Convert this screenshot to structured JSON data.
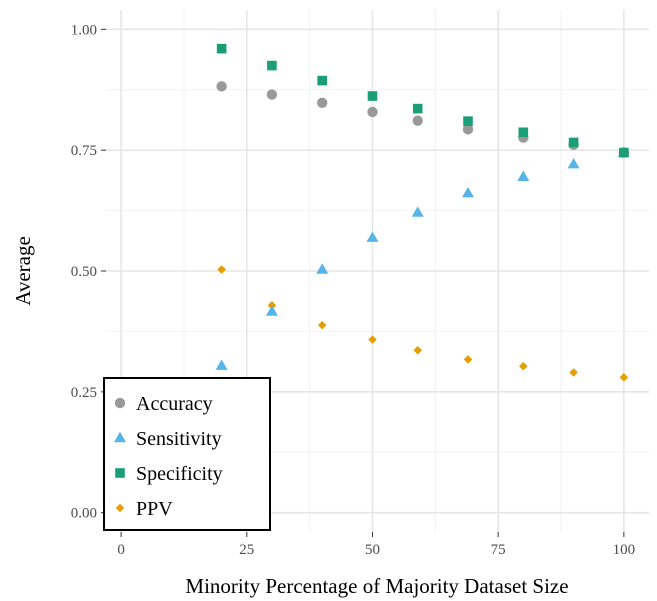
{
  "chart_data": {
    "type": "scatter",
    "title": "",
    "xlabel": "Minority Percentage of Majority Dataset Size",
    "ylabel": "Average",
    "xlim": [
      -3,
      105
    ],
    "ylim": [
      -0.04,
      1.04
    ],
    "x_ticks": [
      0,
      25,
      50,
      75,
      100
    ],
    "x_tick_labels": [
      "0",
      "25",
      "50",
      "75",
      "100"
    ],
    "y_ticks": [
      0,
      0.25,
      0.5,
      0.75,
      1.0
    ],
    "y_tick_labels": [
      "0.00",
      "0.25",
      "0.50",
      "0.75",
      "1.00"
    ],
    "grid": true,
    "legend_position": "bottom-left",
    "x": [
      20,
      30,
      40,
      50,
      59,
      69,
      80,
      90,
      100
    ],
    "series": [
      {
        "name": "Accuracy",
        "marker": "circle",
        "color": "#999999",
        "values": [
          0.882,
          0.865,
          0.848,
          0.829,
          0.811,
          0.793,
          0.776,
          0.761,
          0.745
        ]
      },
      {
        "name": "Sensitivity",
        "marker": "triangle",
        "color": "#56B4E9",
        "values": [
          0.304,
          0.416,
          0.503,
          0.569,
          0.621,
          0.661,
          0.695,
          0.721,
          0.745
        ]
      },
      {
        "name": "Specificity",
        "marker": "square",
        "color": "#1A9E77",
        "values": [
          0.96,
          0.925,
          0.894,
          0.862,
          0.836,
          0.81,
          0.787,
          0.766,
          0.745
        ]
      },
      {
        "name": "PPV",
        "marker": "diamond",
        "color": "#E69F00",
        "values": [
          0.503,
          0.429,
          0.388,
          0.358,
          0.336,
          0.317,
          0.303,
          0.29,
          0.28
        ]
      }
    ]
  }
}
